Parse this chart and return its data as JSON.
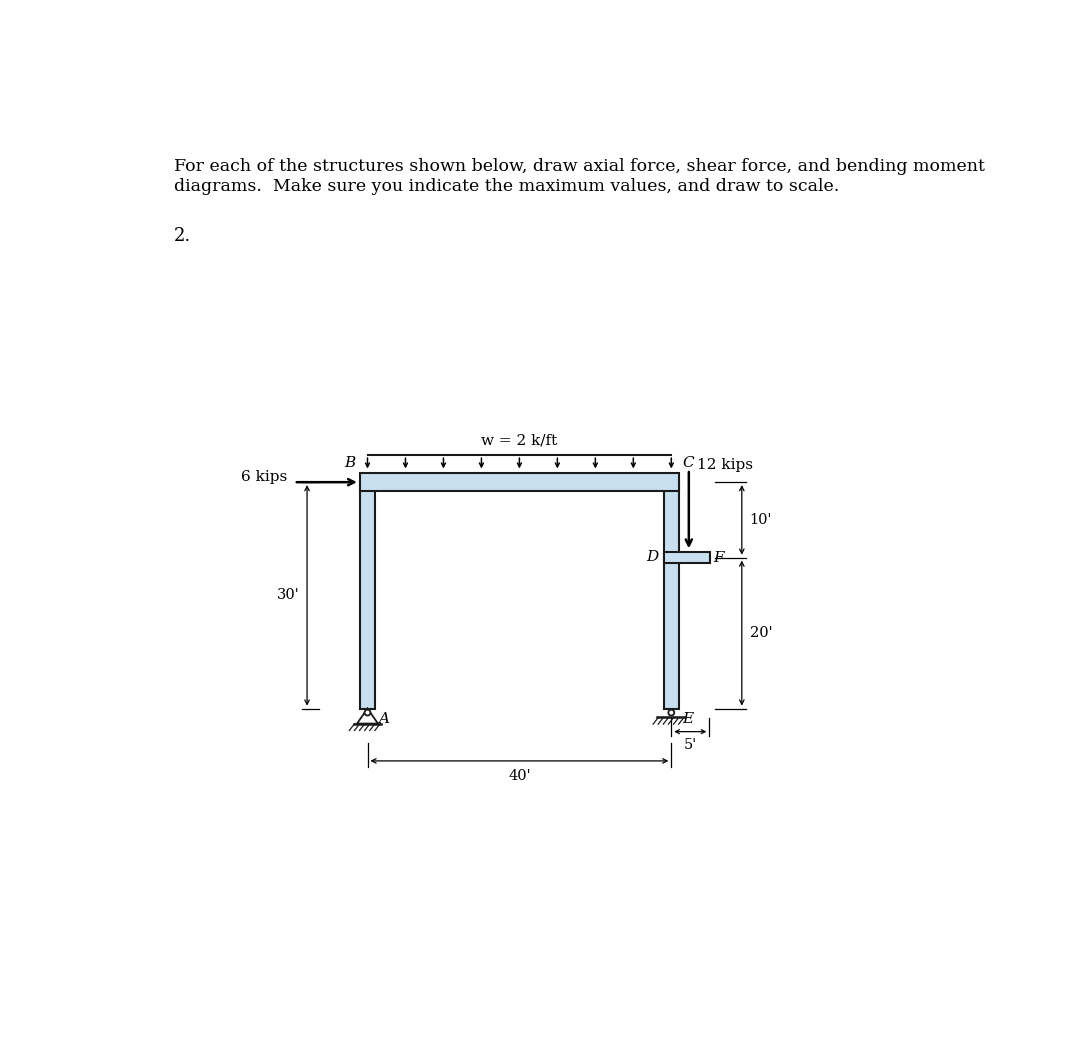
{
  "title_text": "For each of the structures shown below, draw axial force, shear force, and bending moment\ndiagrams.  Make sure you indicate the maximum values, and draw to scale.",
  "problem_number": "2.",
  "w_label": "w = 2 k/ft",
  "load_6kips_label": "6 kips",
  "load_12kips_label": "12 kips",
  "node_A": "A",
  "node_B": "B",
  "node_C": "C",
  "node_D": "D",
  "node_E": "E",
  "node_F": "F",
  "dim_30": "30'",
  "dim_20": "20'",
  "dim_10": "10'",
  "dim_40": "40'",
  "dim_5": "5'",
  "bg_color": "#ffffff",
  "beam_fill_color": "#c8dff0",
  "beam_edge_color": "#1a1a1a",
  "arrow_color": "#000000",
  "text_color": "#000000",
  "font_size_title": 12.5,
  "font_size_labels": 11,
  "font_size_dims": 10.5,
  "font_size_problem": 13,
  "ox": 3.0,
  "oy": 3.05,
  "sx": 0.098,
  "sy": 0.098,
  "bt": 0.24,
  "ct": 0.2
}
